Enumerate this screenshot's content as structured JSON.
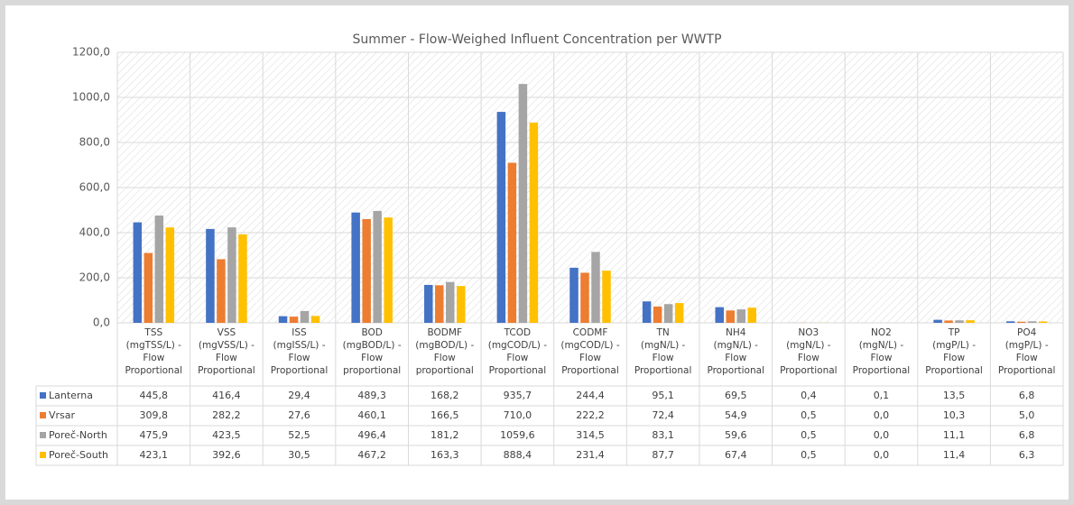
{
  "chart_data": {
    "type": "bar",
    "title": "Summer - Flow-Weighed Influent Concentration per WWTP",
    "categories": [
      "TSS\n(mgTSS/L) -\nFlow\nProportional",
      "VSS\n(mgVSS/L) -\nFlow\nProportional",
      "ISS\n(mgISS/L) -\nFlow\nProportional",
      "BOD\n(mgBOD/L) -\nFlow\nproportional",
      "BODMF\n(mgBOD/L) -\nFlow\nproportional",
      "TCOD\n(mgCOD/L) -\nFlow\nProportional",
      "CODMF\n(mgCOD/L) -\nFlow\nProportional",
      "TN\n(mgN/L) -\nFlow\nProportional",
      "NH4\n(mgN/L) -\nFlow\nProportional",
      "NO3\n(mgN/L) -\nFlow\nProportional",
      "NO2\n(mgN/L) -\nFlow\nProportional",
      "TP\n(mgP/L) -\nFlow\nProportional",
      "PO4\n(mgP/L) -\nFlow\nProportional"
    ],
    "series": [
      {
        "name": "Lanterna",
        "color": "#4472c4",
        "values": [
          445.8,
          416.4,
          29.4,
          489.3,
          168.2,
          935.7,
          244.4,
          95.1,
          69.5,
          0.4,
          0.1,
          13.5,
          6.8
        ],
        "value_labels": [
          "445,8",
          "416,4",
          "29,4",
          "489,3",
          "168,2",
          "935,7",
          "244,4",
          "95,1",
          "69,5",
          "0,4",
          "0,1",
          "13,5",
          "6,8"
        ]
      },
      {
        "name": "Vrsar",
        "color": "#ed7d31",
        "values": [
          309.8,
          282.2,
          27.6,
          460.1,
          166.5,
          710.0,
          222.2,
          72.4,
          54.9,
          0.5,
          0.0,
          10.3,
          5.0
        ],
        "value_labels": [
          "309,8",
          "282,2",
          "27,6",
          "460,1",
          "166,5",
          "710,0",
          "222,2",
          "72,4",
          "54,9",
          "0,5",
          "0,0",
          "10,3",
          "5,0"
        ]
      },
      {
        "name": "Poreč-North",
        "color": "#a5a5a5",
        "values": [
          475.9,
          423.5,
          52.5,
          496.4,
          181.2,
          1059.6,
          314.5,
          83.1,
          59.6,
          0.5,
          0.0,
          11.1,
          6.8
        ],
        "value_labels": [
          "475,9",
          "423,5",
          "52,5",
          "496,4",
          "181,2",
          "1059,6",
          "314,5",
          "83,1",
          "59,6",
          "0,5",
          "0,0",
          "11,1",
          "6,8"
        ]
      },
      {
        "name": "Poreč-South",
        "color": "#ffc000",
        "values": [
          423.1,
          392.6,
          30.5,
          467.2,
          163.3,
          888.4,
          231.4,
          87.7,
          67.4,
          0.5,
          0.0,
          11.4,
          6.3
        ],
        "value_labels": [
          "423,1",
          "392,6",
          "30,5",
          "467,2",
          "163,3",
          "888,4",
          "231,4",
          "87,7",
          "67,4",
          "0,5",
          "0,0",
          "11,4",
          "6,3"
        ]
      }
    ],
    "ylim": [
      0,
      1200
    ],
    "yticks": [
      {
        "value": 0,
        "label": "0,0"
      },
      {
        "value": 200,
        "label": "200,0"
      },
      {
        "value": 400,
        "label": "400,0"
      },
      {
        "value": 600,
        "label": "600,0"
      },
      {
        "value": 800,
        "label": "800,0"
      },
      {
        "value": 1000,
        "label": "1000,0"
      },
      {
        "value": 1200,
        "label": "1200,0"
      }
    ],
    "grid": true
  }
}
